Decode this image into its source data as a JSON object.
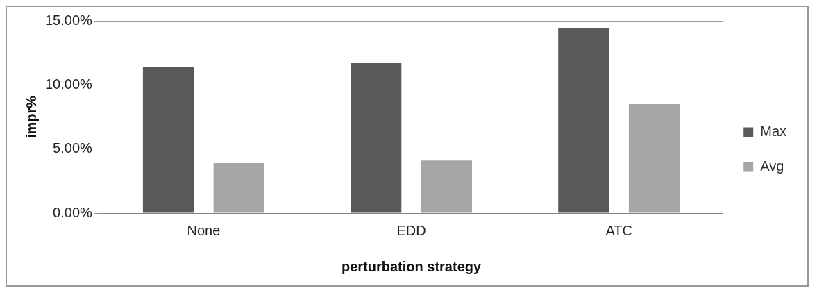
{
  "chart_data": {
    "type": "bar",
    "xlabel": "perturbation strategy",
    "ylabel": "impr%",
    "categories": [
      "None",
      "EDD",
      "ATC"
    ],
    "series": [
      {
        "name": "Max",
        "color": "#595959",
        "values": [
          11.4,
          11.7,
          14.4
        ]
      },
      {
        "name": "Avg",
        "color": "#a6a6a6",
        "values": [
          3.9,
          4.1,
          8.5
        ]
      }
    ],
    "ylim": [
      0,
      15
    ],
    "yticks": [
      {
        "value": 0,
        "label": "0.00%"
      },
      {
        "value": 5,
        "label": "5.00%"
      },
      {
        "value": 10,
        "label": "10.00%"
      },
      {
        "value": 15,
        "label": "15.00%"
      }
    ],
    "grid": "y",
    "legend": "right"
  }
}
